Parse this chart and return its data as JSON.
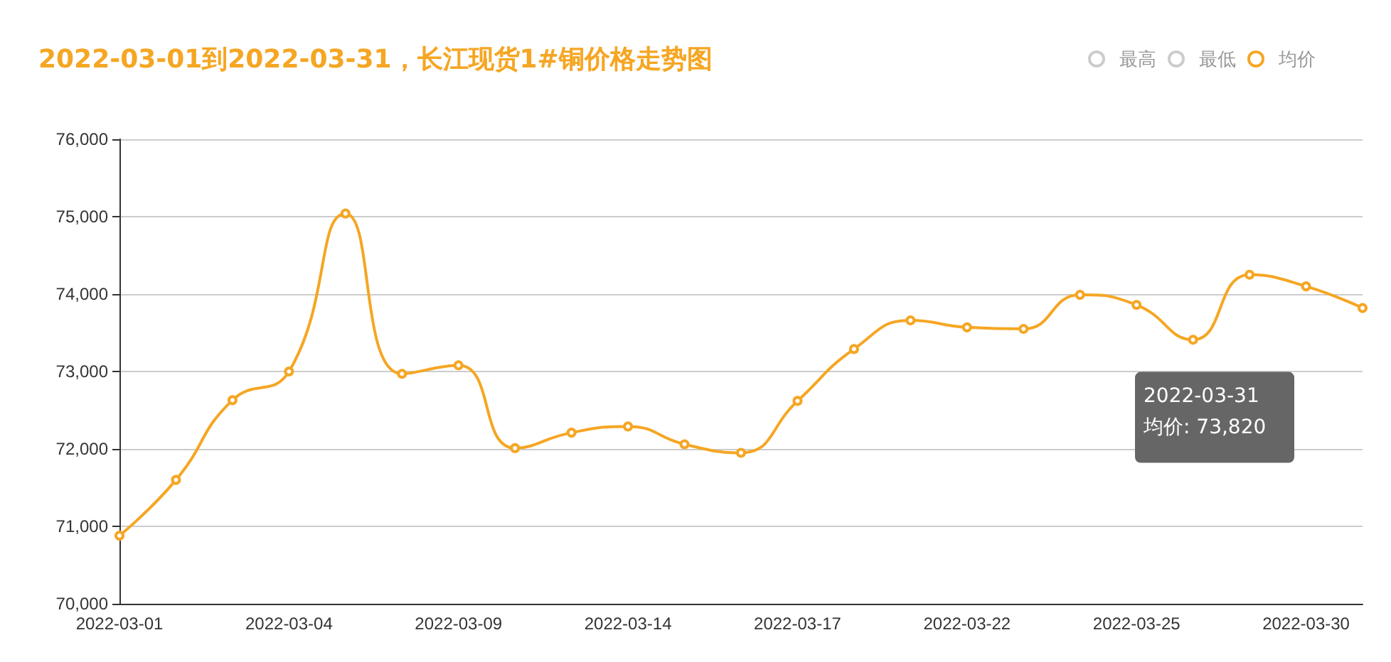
{
  "chart_data": {
    "type": "line",
    "title": "2022-03-01到2022-03-31，长江现货1#铜价格走势图",
    "categories": [
      "2022-03-01",
      null,
      null,
      "2022-03-04",
      null,
      null,
      "2022-03-09",
      null,
      null,
      "2022-03-14",
      null,
      null,
      "2022-03-17",
      null,
      null,
      "2022-03-22",
      null,
      null,
      "2022-03-25",
      null,
      null,
      "2022-03-30",
      null
    ],
    "series": [
      {
        "name": "最高",
        "color": "#cccccc",
        "values": [
          null,
          null,
          null,
          null,
          null,
          null,
          null,
          null,
          null,
          null,
          null,
          null,
          null,
          null,
          null,
          null,
          null,
          null,
          null,
          null,
          null,
          null,
          null
        ]
      },
      {
        "name": "最低",
        "color": "#cccccc",
        "values": [
          null,
          null,
          null,
          null,
          null,
          null,
          null,
          null,
          null,
          null,
          null,
          null,
          null,
          null,
          null,
          null,
          null,
          null,
          null,
          null,
          null,
          null,
          null
        ]
      },
      {
        "name": "均价",
        "color": "#f5a623",
        "values": [
          70880,
          71600,
          72630,
          73000,
          75040,
          72970,
          73080,
          72010,
          72210,
          72290,
          72060,
          71950,
          72620,
          73290,
          73660,
          73570,
          73550,
          73990,
          73860,
          73410,
          74250,
          74100,
          73820
        ]
      }
    ],
    "ylim": [
      70000,
      76000
    ],
    "yticks": [
      {
        "value": 70000,
        "label": "70,000"
      },
      {
        "value": 71000,
        "label": "71,000"
      },
      {
        "value": 72000,
        "label": "72,000"
      },
      {
        "value": 73000,
        "label": "73,000"
      },
      {
        "value": 74000,
        "label": "74,000"
      },
      {
        "value": 75000,
        "label": "75,000"
      },
      {
        "value": 76000,
        "label": "76,000"
      }
    ],
    "grid": "y",
    "legend": "top right",
    "marker": "circle",
    "line_style": "solid",
    "annotations": [
      "2022-03-31\n均价: 73,820"
    ]
  }
}
